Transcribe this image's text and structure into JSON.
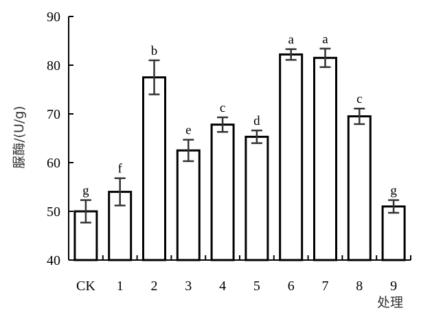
{
  "chart_data": {
    "type": "bar",
    "title": "",
    "xlabel": "处理",
    "ylabel": "脲酶/(U/g)",
    "ylim": [
      40,
      90
    ],
    "yticks": [
      40,
      50,
      60,
      70,
      80,
      90
    ],
    "grid": false,
    "categories": [
      "CK",
      "1",
      "2",
      "3",
      "4",
      "5",
      "6",
      "7",
      "8",
      "9"
    ],
    "series": [
      {
        "values": [
          50.0,
          54.0,
          77.5,
          62.5,
          67.8,
          65.3,
          82.2,
          81.5,
          69.5,
          51.0
        ],
        "errors": [
          2.3,
          2.8,
          3.5,
          2.2,
          1.5,
          1.3,
          1.1,
          1.9,
          1.6,
          1.3
        ],
        "letters": [
          "g",
          "f",
          "b",
          "e",
          "c",
          "d",
          "a",
          "a",
          "c",
          "g"
        ]
      }
    ],
    "colors": {
      "bar_fill": "#ffffff",
      "stroke": "#000000",
      "error_bar": "#333333"
    }
  }
}
